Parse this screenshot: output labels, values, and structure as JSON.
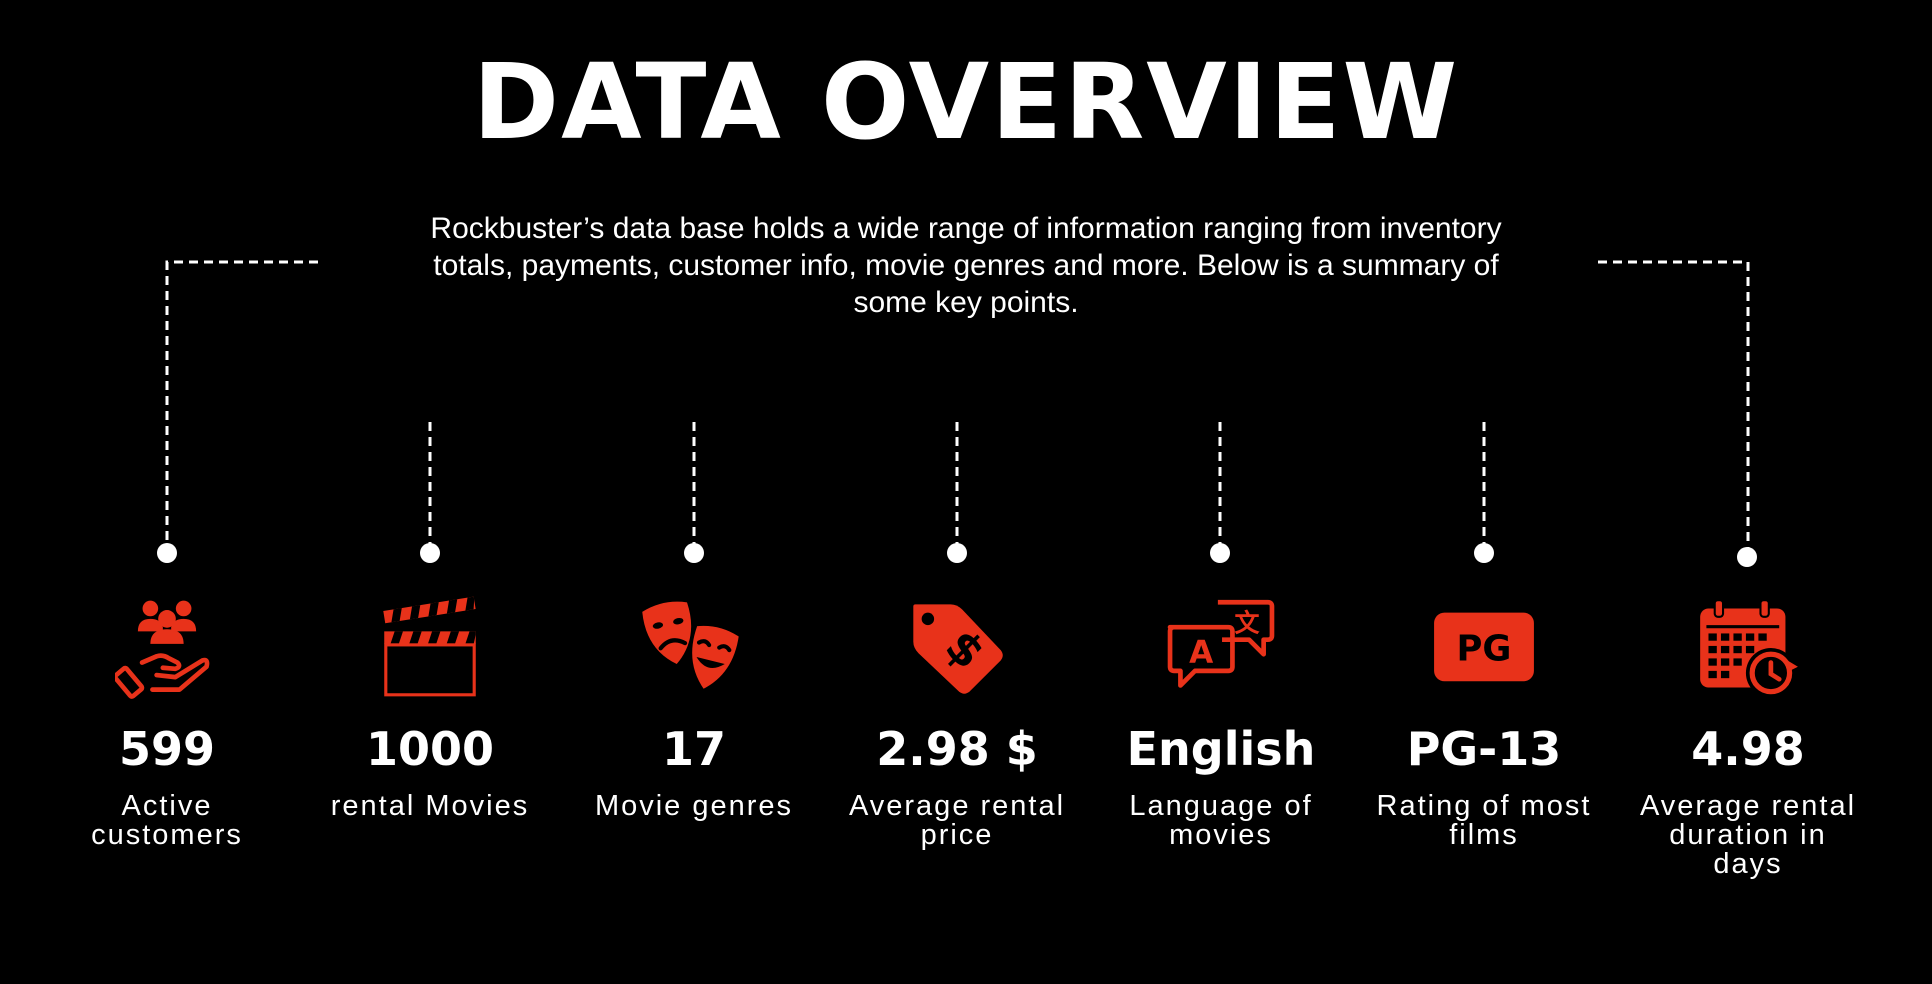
{
  "title": "DATA OVERVIEW",
  "intro": "Rockbuster’s data base holds a wide range of information ranging from inventory totals, payments, customer info, movie genres and more. Below is a summary of some key points.",
  "accent_color": "#E8321A",
  "stats": [
    {
      "icon": "hand-people-icon",
      "value": "599",
      "label": "Active customers"
    },
    {
      "icon": "clapperboard-icon",
      "value": "1000",
      "label": "rental Movies"
    },
    {
      "icon": "theater-masks-icon",
      "value": "17",
      "label": "Movie genres"
    },
    {
      "icon": "price-tag-icon",
      "value": "2.98 $",
      "label": "Average rental price"
    },
    {
      "icon": "translate-icon",
      "value": "English",
      "label": "Language of movies"
    },
    {
      "icon": "pg-badge-icon",
      "value": "PG-13",
      "label": "Rating of most films",
      "badge_text": "PG"
    },
    {
      "icon": "calendar-clock-icon",
      "value": "4.98",
      "label": "Average rental duration in days"
    }
  ]
}
